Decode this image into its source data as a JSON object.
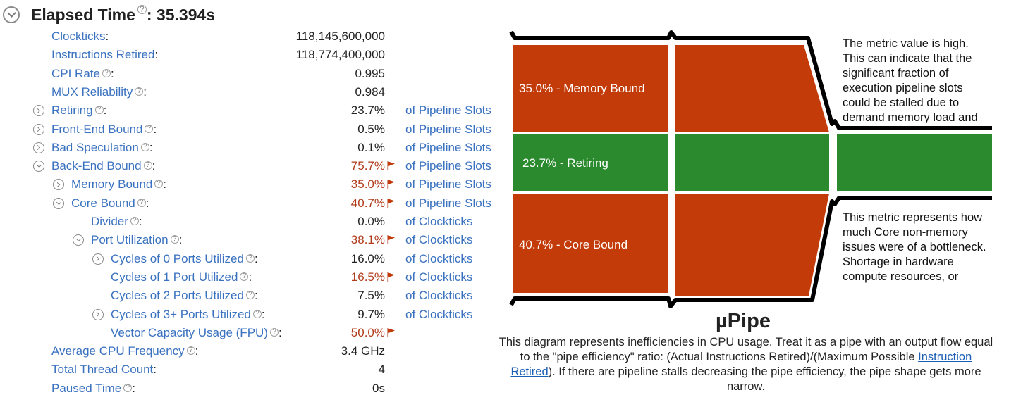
{
  "header": {
    "title": "Elapsed Time",
    "help": "?",
    "value": ": 35.394s"
  },
  "metrics": [
    {
      "name": "Clockticks",
      "value": "118,145,600,000",
      "unit": "",
      "high": false,
      "help": false,
      "expander": "none",
      "indent": 0
    },
    {
      "name": "Instructions Retired",
      "value": "118,774,400,000",
      "unit": "",
      "high": false,
      "help": false,
      "expander": "none",
      "indent": 0
    },
    {
      "name": "CPI Rate",
      "value": "0.995",
      "unit": "",
      "high": false,
      "help": true,
      "expander": "none",
      "indent": 0
    },
    {
      "name": "MUX Reliability",
      "value": "0.984",
      "unit": "",
      "high": false,
      "help": true,
      "expander": "none",
      "indent": 0
    },
    {
      "name": "Retiring",
      "value": "23.7%",
      "unit": "of Pipeline Slots",
      "high": false,
      "help": true,
      "expander": "collapsed",
      "indent": 0
    },
    {
      "name": "Front-End Bound",
      "value": "0.5%",
      "unit": "of Pipeline Slots",
      "high": false,
      "help": true,
      "expander": "collapsed",
      "indent": 0
    },
    {
      "name": "Bad Speculation",
      "value": "0.1%",
      "unit": "of Pipeline Slots",
      "high": false,
      "help": true,
      "expander": "collapsed",
      "indent": 0
    },
    {
      "name": "Back-End Bound",
      "value": "75.7%",
      "unit": "of Pipeline Slots",
      "high": true,
      "help": true,
      "expander": "expanded",
      "indent": 0
    },
    {
      "name": "Memory Bound",
      "value": "35.0%",
      "unit": "of Pipeline Slots",
      "high": true,
      "help": true,
      "expander": "collapsed",
      "indent": 1
    },
    {
      "name": "Core Bound",
      "value": "40.7%",
      "unit": "of Pipeline Slots",
      "high": true,
      "help": true,
      "expander": "expanded",
      "indent": 1
    },
    {
      "name": "Divider",
      "value": "0.0%",
      "unit": "of Clockticks",
      "high": false,
      "help": true,
      "expander": "none",
      "indent": 2
    },
    {
      "name": "Port Utilization",
      "value": "38.1%",
      "unit": "of Clockticks",
      "high": true,
      "help": true,
      "expander": "expanded",
      "indent": 2
    },
    {
      "name": "Cycles of 0 Ports Utilized",
      "value": "16.0%",
      "unit": "of Clockticks",
      "high": false,
      "help": true,
      "expander": "collapsed",
      "indent": 3
    },
    {
      "name": "Cycles of 1 Port Utilized",
      "value": "16.5%",
      "unit": "of Clockticks",
      "high": true,
      "help": true,
      "expander": "none",
      "indent": 3
    },
    {
      "name": "Cycles of 2 Ports Utilized",
      "value": "7.5%",
      "unit": "of Clockticks",
      "high": false,
      "help": true,
      "expander": "none",
      "indent": 3
    },
    {
      "name": "Cycles of 3+ Ports Utilized",
      "value": "9.7%",
      "unit": "of Clockticks",
      "high": false,
      "help": true,
      "expander": "collapsed",
      "indent": 3
    },
    {
      "name": "Vector Capacity Usage (FPU)",
      "value": "50.0%",
      "unit": "",
      "high": true,
      "help": true,
      "expander": "none",
      "indent": 3
    },
    {
      "name": "Average CPU Frequency",
      "value": "3.4 GHz",
      "unit": "",
      "high": false,
      "help": true,
      "expander": "none",
      "indent": 0
    },
    {
      "name": "Total Thread Count",
      "value": "4",
      "unit": "",
      "high": false,
      "help": false,
      "expander": "none",
      "indent": 0
    },
    {
      "name": "Paused Time",
      "value": "0s",
      "unit": "",
      "high": false,
      "help": true,
      "expander": "none",
      "indent": 0
    }
  ],
  "pipe": {
    "memory_bound_label": "35.0% - Memory Bound",
    "retiring_label": "23.7% - Retiring",
    "core_bound_label": "40.7% - Core Bound",
    "memory_bound_note": "The metric value is high. This can indicate that the significant fraction of execution pipeline slots could be stalled due to demand memory load and stores.",
    "core_bound_note": "This metric represents how much Core non-memory issues were of a bottleneck. Shortage in hardware compute resources, or",
    "colors": {
      "stall": "#c23b08",
      "retiring": "#2b8a2e",
      "outline": "#000000"
    }
  },
  "upipe": {
    "title": "µPipe",
    "desc_before": "This diagram represents inefficiencies in CPU usage. Treat it as a pipe with an output flow equal to the \"pipe efficiency\" ratio: (Actual Instructions Retired)/(Maximum Possible ",
    "desc_link": "Instruction Retired",
    "desc_after": "). If there are pipeline stalls decreasing the pipe efficiency, the pipe shape gets more narrow."
  }
}
